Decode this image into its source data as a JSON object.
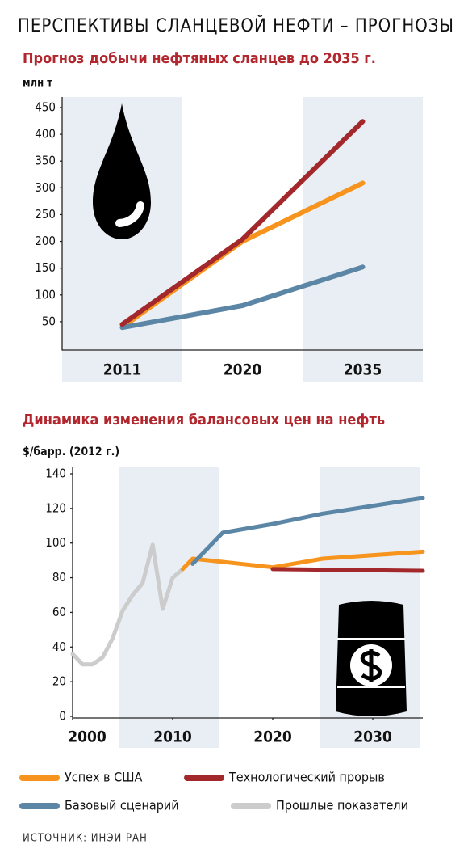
{
  "title": "ПЕРСПЕКТИВЫ СЛАНЦЕВОЙ НЕФТИ – ПРОГНОЗЫ",
  "chart_data": [
    {
      "type": "line",
      "title": "Прогноз добычи нефтяных сланцев до 2035 г.",
      "y_label": "млн т",
      "categories": [
        "2011",
        "2020",
        "2035"
      ],
      "series": [
        {
          "color": "#f7941d",
          "values": [
            40,
            200,
            309
          ]
        },
        {
          "color": "#5b86a5",
          "values": [
            39,
            80,
            152
          ]
        },
        {
          "color": "#a3282c",
          "values": [
            45,
            204,
            424
          ]
        }
      ],
      "ylim": [
        0,
        450
      ],
      "yticks": [
        50,
        100,
        150,
        200,
        250,
        300,
        350,
        400,
        450
      ]
    },
    {
      "type": "line",
      "title": "Динамика изменения балансовых цен на нефть",
      "y_label": "$/барр. (2012 г.)",
      "series": [
        {
          "name": "Успех в США",
          "color": "#f7941d",
          "x": [
            2011,
            2012,
            2020,
            2025,
            2035
          ],
          "values": [
            85,
            91,
            86,
            91,
            95
          ]
        },
        {
          "name": "Технологический прорыв",
          "color": "#a3282c",
          "x": [
            2020,
            2035
          ],
          "values": [
            85,
            84
          ]
        },
        {
          "name": "Базовый сценарий",
          "color": "#5b86a5",
          "x": [
            2012,
            2015,
            2020,
            2025,
            2035
          ],
          "values": [
            88,
            106,
            111,
            117,
            126
          ]
        },
        {
          "name": "Прошлые показатели",
          "color": "#cccccc",
          "x": [
            2000,
            2001,
            2002,
            2003,
            2004,
            2005,
            2006,
            2007,
            2008,
            2009,
            2010,
            2011
          ],
          "values": [
            36,
            30,
            30,
            34,
            45,
            61,
            70,
            77,
            99,
            62,
            80,
            85
          ]
        }
      ],
      "xlim": [
        2000,
        2035
      ],
      "xticks": [
        2000,
        2010,
        2020,
        2030
      ],
      "ylim": [
        0,
        140
      ],
      "yticks": [
        0,
        20,
        40,
        60,
        80,
        100,
        120,
        140
      ]
    }
  ],
  "source": "ИСТОЧНИК: ИНЭИ РАН"
}
